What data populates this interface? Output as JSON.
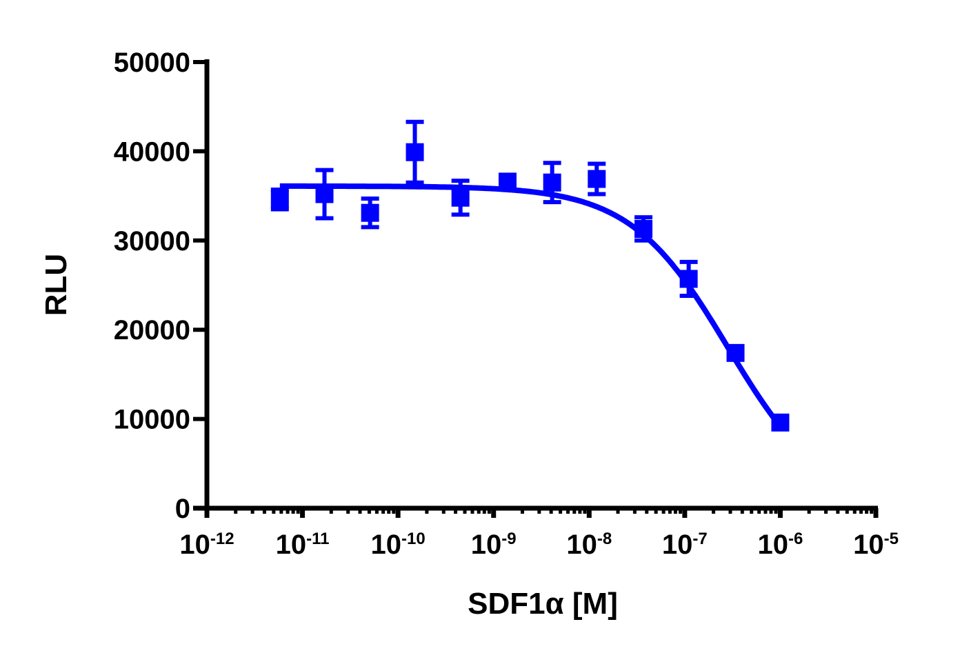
{
  "chart_data": {
    "type": "scatter",
    "title": "",
    "xlabel": "SDF1α  [M]",
    "ylabel": "RLU",
    "xscale": "log",
    "xlim": [
      1e-12,
      1e-05
    ],
    "ylim": [
      0,
      50000
    ],
    "x_tick_labels": [
      {
        "base": "10",
        "exp": "-12"
      },
      {
        "base": "10",
        "exp": "-11"
      },
      {
        "base": "10",
        "exp": "-10"
      },
      {
        "base": "10",
        "exp": "-9"
      },
      {
        "base": "10",
        "exp": "-8"
      },
      {
        "base": "10",
        "exp": "-7"
      },
      {
        "base": "10",
        "exp": "-6"
      },
      {
        "base": "10",
        "exp": "-5"
      }
    ],
    "y_ticks": [
      0,
      10000,
      20000,
      30000,
      40000,
      50000
    ],
    "y_tick_labels": [
      "0",
      "10000",
      "20000",
      "30000",
      "40000",
      "50000"
    ],
    "grid": false,
    "legend": null,
    "series": [
      {
        "name": "SDF1α",
        "color": "#0000ff",
        "marker": "square",
        "points": [
          {
            "x": 5.8e-12,
            "y": 34600,
            "err": 1100
          },
          {
            "x": 1.7e-11,
            "y": 35200,
            "err": 2700
          },
          {
            "x": 5.1e-11,
            "y": 33100,
            "err": 1600
          },
          {
            "x": 1.5e-10,
            "y": 39900,
            "err": 3400
          },
          {
            "x": 4.5e-10,
            "y": 34800,
            "err": 1900
          },
          {
            "x": 1.4e-09,
            "y": 36600,
            "err": 0
          },
          {
            "x": 4.1e-09,
            "y": 36500,
            "err": 2200
          },
          {
            "x": 1.2e-08,
            "y": 36900,
            "err": 1700
          },
          {
            "x": 3.7e-08,
            "y": 31300,
            "err": 1300
          },
          {
            "x": 1.1e-07,
            "y": 25700,
            "err": 1900
          },
          {
            "x": 3.4e-07,
            "y": 17400,
            "err": 0
          },
          {
            "x": 1e-06,
            "y": 9600,
            "err": 0
          }
        ],
        "fit": {
          "model": "4PL",
          "top": 36100,
          "bottom": 0,
          "logIC50": -6.55,
          "hill": -0.85,
          "x_range": [
            5.8e-12,
            1e-06
          ]
        }
      }
    ]
  }
}
